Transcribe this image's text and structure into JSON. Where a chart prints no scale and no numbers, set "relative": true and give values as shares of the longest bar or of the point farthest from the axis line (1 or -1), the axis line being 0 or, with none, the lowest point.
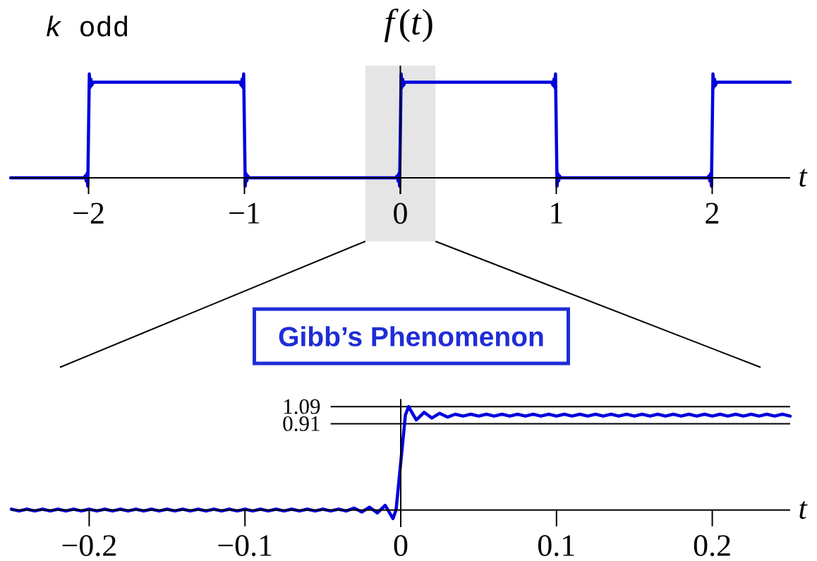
{
  "chart_data": [
    {
      "type": "line",
      "title": "*f*(*t*)",
      "xlabel": "t",
      "annotations": [
        "*k* odd"
      ],
      "relative": true,
      "x": [
        -2.5,
        -2.03,
        -2.02,
        -2.015,
        -2.01,
        -2.005,
        -2,
        -1.995,
        -1.99,
        -1.985,
        -1.98,
        -1.97,
        -1.03,
        -1.02,
        -1.015,
        -1.01,
        -1.005,
        -1,
        -0.995,
        -0.99,
        -0.985,
        -0.98,
        -0.97,
        -0.03,
        -0.02,
        -0.015,
        -0.01,
        -0.005,
        0,
        0.005,
        0.01,
        0.015,
        0.02,
        0.03,
        0.97,
        0.98,
        0.985,
        0.99,
        0.995,
        1,
        1.005,
        1.01,
        1.015,
        1.02,
        1.03,
        1.97,
        1.98,
        1.985,
        1.99,
        1.995,
        2,
        2.005,
        2.01,
        2.015,
        2.02,
        2.03,
        2.5
      ],
      "series": [
        {
          "color": "#0000dd",
          "values": [
            0,
            0,
            0.02,
            -0.03,
            0.04,
            -0.08,
            0.46,
            1,
            0.87,
            0.95,
            0.89,
            0.92,
            0.92,
            0.89,
            0.95,
            0.87,
            1,
            0.46,
            -0.08,
            0.04,
            -0.03,
            0.02,
            0,
            0,
            0.02,
            -0.03,
            0.04,
            -0.08,
            0.46,
            1,
            0.87,
            0.95,
            0.89,
            0.92,
            0.92,
            0.89,
            0.95,
            0.87,
            1,
            0.46,
            -0.08,
            0.04,
            -0.03,
            0.02,
            0,
            0,
            0.02,
            -0.03,
            0.04,
            -0.08,
            0.46,
            1,
            0.87,
            0.95,
            0.89,
            0.92,
            0.92
          ]
        }
      ],
      "xlim": [
        -2.5,
        2.5
      ],
      "xticks": [
        {
          "value": -2,
          "label": "−2"
        },
        {
          "value": -1,
          "label": "−1"
        },
        0,
        1,
        2
      ],
      "bands": [
        {
          "axis": "x",
          "from": -0.225,
          "to": 0.225,
          "color": "#e5e5e5"
        }
      ]
    },
    {
      "type": "line",
      "xlabel": "t",
      "annotations": [
        "Gibb’s Phenomenon"
      ],
      "x": [
        -0.25,
        -0.245,
        -0.24,
        -0.235,
        -0.23,
        -0.225,
        -0.22,
        -0.215,
        -0.21,
        -0.205,
        -0.2,
        -0.195,
        -0.19,
        -0.185,
        -0.18,
        -0.175,
        -0.17,
        -0.165,
        -0.16,
        -0.155,
        -0.15,
        -0.145,
        -0.14,
        -0.135,
        -0.13,
        -0.125,
        -0.12,
        -0.115,
        -0.11,
        -0.105,
        -0.1,
        -0.095,
        -0.09,
        -0.085,
        -0.08,
        -0.075,
        -0.07,
        -0.065,
        -0.06,
        -0.055,
        -0.05,
        -0.045,
        -0.04,
        -0.035,
        -0.03,
        -0.025,
        -0.02,
        -0.015,
        -0.01,
        -0.005,
        -0.003,
        0,
        0.003,
        0.005,
        0.01,
        0.015,
        0.02,
        0.025,
        0.03,
        0.035,
        0.04,
        0.045,
        0.05,
        0.055,
        0.06,
        0.065,
        0.07,
        0.075,
        0.08,
        0.085,
        0.09,
        0.095,
        0.1,
        0.105,
        0.11,
        0.115,
        0.12,
        0.125,
        0.13,
        0.135,
        0.14,
        0.145,
        0.15,
        0.155,
        0.16,
        0.165,
        0.17,
        0.175,
        0.18,
        0.185,
        0.19,
        0.195,
        0.2,
        0.205,
        0.21,
        0.215,
        0.22,
        0.225,
        0.23,
        0.235,
        0.24,
        0.245,
        0.25
      ],
      "series": [
        {
          "color": "#0000dd",
          "values": [
            0.01,
            -0.01,
            0.01,
            -0.01,
            0.01,
            -0.01,
            0.01,
            -0.01,
            0.01,
            -0.01,
            0.01,
            -0.01,
            0.01,
            -0.01,
            0.01,
            -0.01,
            0.01,
            -0.01,
            0.01,
            -0.01,
            0.01,
            -0.01,
            0.01,
            -0.01,
            0.01,
            -0.01,
            0.01,
            -0.01,
            0.01,
            -0.01,
            0.01,
            -0.01,
            0.01,
            -0.01,
            0.01,
            -0.01,
            0.01,
            -0.01,
            0.01,
            -0.01,
            0.01,
            -0.01,
            0.01,
            -0.01,
            0.02,
            -0.02,
            0.03,
            -0.03,
            0.05,
            -0.09,
            0,
            0.5,
            1,
            1.09,
            0.95,
            1.03,
            0.97,
            1.02,
            0.98,
            1.01,
            0.99,
            1.01,
            0.99,
            1.01,
            0.99,
            1.01,
            0.99,
            1.01,
            0.99,
            1.01,
            0.99,
            1.01,
            0.99,
            1.01,
            0.99,
            1.01,
            0.99,
            1.01,
            0.99,
            1.01,
            0.99,
            1.01,
            0.99,
            1.01,
            0.99,
            1.01,
            0.99,
            1.01,
            0.99,
            1.01,
            0.99,
            1.01,
            0.99,
            1.01,
            0.99,
            1.01,
            0.99,
            1.01,
            0.99,
            1.01,
            0.99,
            1.01,
            0.99
          ]
        }
      ],
      "xlim": [
        -0.25,
        0.25
      ],
      "ylim": [
        -0.18,
        1.17
      ],
      "xticks": [
        {
          "value": -0.2,
          "label": "−0.2"
        },
        {
          "value": -0.1,
          "label": "−0.1"
        },
        0,
        0.1,
        0.2
      ],
      "yticks": [
        0.91,
        1.09
      ],
      "ref_lines": [
        {
          "axis": "y",
          "value": 0.91
        },
        {
          "axis": "y",
          "value": 1.09
        }
      ]
    }
  ]
}
